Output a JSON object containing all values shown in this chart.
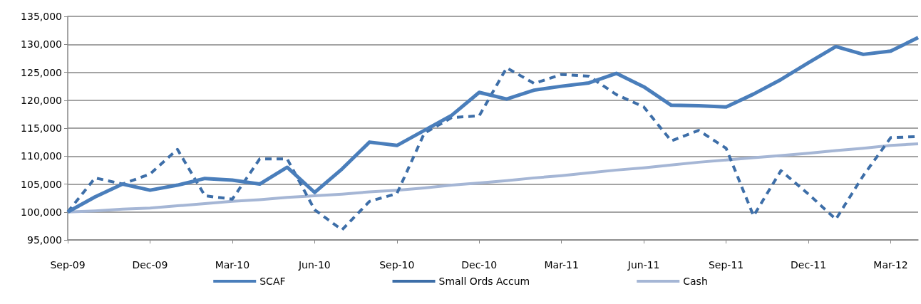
{
  "chart_data": {
    "type": "line",
    "categories": [
      "Sep-09",
      null,
      null,
      "Dec-09",
      null,
      null,
      "Mar-10",
      null,
      null,
      "Jun-10",
      null,
      null,
      "Sep-10",
      null,
      null,
      "Dec-10",
      null,
      null,
      "Mar-11",
      null,
      null,
      "Jun-11",
      null,
      null,
      "Sep-11",
      null,
      null,
      "Dec-11",
      null,
      null,
      "Mar-12",
      null
    ],
    "series": [
      {
        "name": "SCAF",
        "color": "#4a7ebb",
        "line_style": "solid",
        "values": [
          100000,
          102700,
          105000,
          103900,
          104800,
          106000,
          105700,
          105000,
          108000,
          103500,
          107700,
          112500,
          111900,
          114600,
          117300,
          121400,
          120200,
          121800,
          122500,
          123100,
          124800,
          122400,
          119100,
          119000,
          118800,
          121100,
          123700,
          126700,
          129600,
          128200,
          128800,
          131200
        ]
      },
      {
        "name": "Small Ords Accum",
        "color": "#3d6ea8",
        "line_style": "dashed",
        "values": [
          100000,
          106100,
          105000,
          106800,
          111200,
          102900,
          102300,
          109500,
          109500,
          100400,
          96800,
          101900,
          103300,
          114100,
          116900,
          117200,
          125800,
          123000,
          124600,
          124300,
          121000,
          118800,
          112700,
          114600,
          111400,
          99300,
          107400,
          103200,
          98700,
          106500,
          113300,
          113500
        ]
      },
      {
        "name": "Cash",
        "color": "#a5b6d5",
        "line_style": "solid",
        "values": [
          100000,
          100200,
          100500,
          100700,
          101100,
          101500,
          101900,
          102200,
          102600,
          102900,
          103200,
          103600,
          103900,
          104300,
          104800,
          105200,
          105600,
          106100,
          106500,
          107000,
          107500,
          107900,
          108400,
          108900,
          109300,
          109700,
          110100,
          110500,
          111000,
          111400,
          111900,
          112200
        ]
      }
    ],
    "ylim": [
      95000,
      135000
    ],
    "yticks": [
      {
        "value": 95000,
        "label": "95,000"
      },
      {
        "value": 100000,
        "label": "100,000"
      },
      {
        "value": 105000,
        "label": "105,000"
      },
      {
        "value": 110000,
        "label": "110,000"
      },
      {
        "value": 115000,
        "label": "115,000"
      },
      {
        "value": 120000,
        "label": "120,000"
      },
      {
        "value": 125000,
        "label": "125,000"
      },
      {
        "value": 130000,
        "label": "130,000"
      },
      {
        "value": 135000,
        "label": "135,000"
      }
    ],
    "grid": "y",
    "legend": "bottom",
    "marker": "none"
  }
}
